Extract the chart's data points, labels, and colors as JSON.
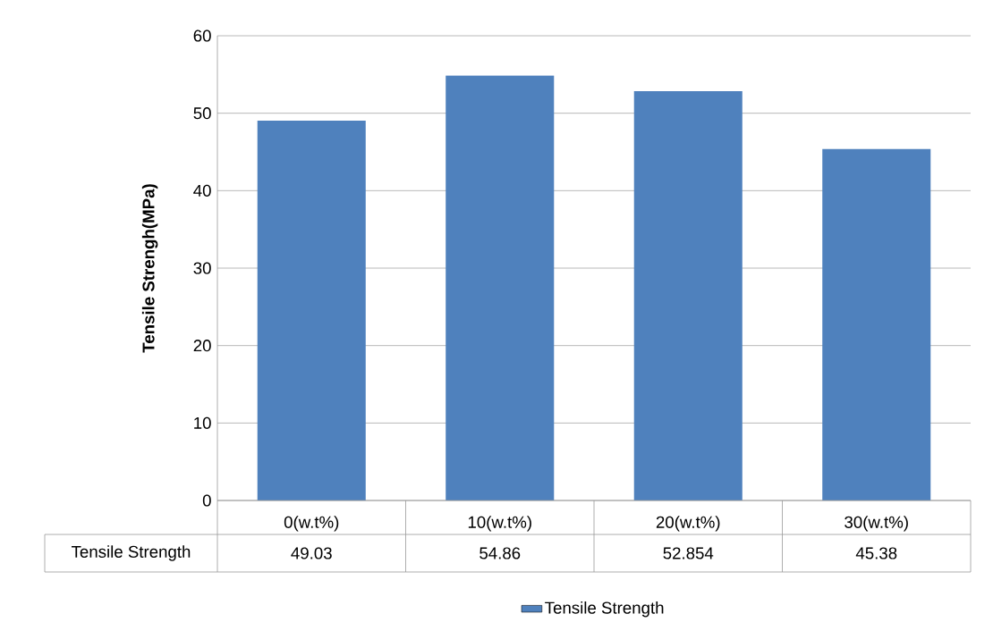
{
  "chart_data": {
    "type": "bar",
    "ylabel": "Tensile Strengh(MPa)",
    "categories": [
      "0(w.t%)",
      "10(w.t%)",
      "20(w.t%)",
      "30(w.t%)"
    ],
    "series": [
      {
        "name": "Tensile Strength",
        "color": "#4f81bd",
        "values": [
          49.03,
          54.86,
          52.854,
          45.38
        ]
      }
    ],
    "ylim": [
      0,
      60
    ],
    "yticks": [
      0,
      10,
      20,
      30,
      40,
      50,
      60
    ],
    "grid": "y",
    "legend": "bottom",
    "data_labels": true
  }
}
